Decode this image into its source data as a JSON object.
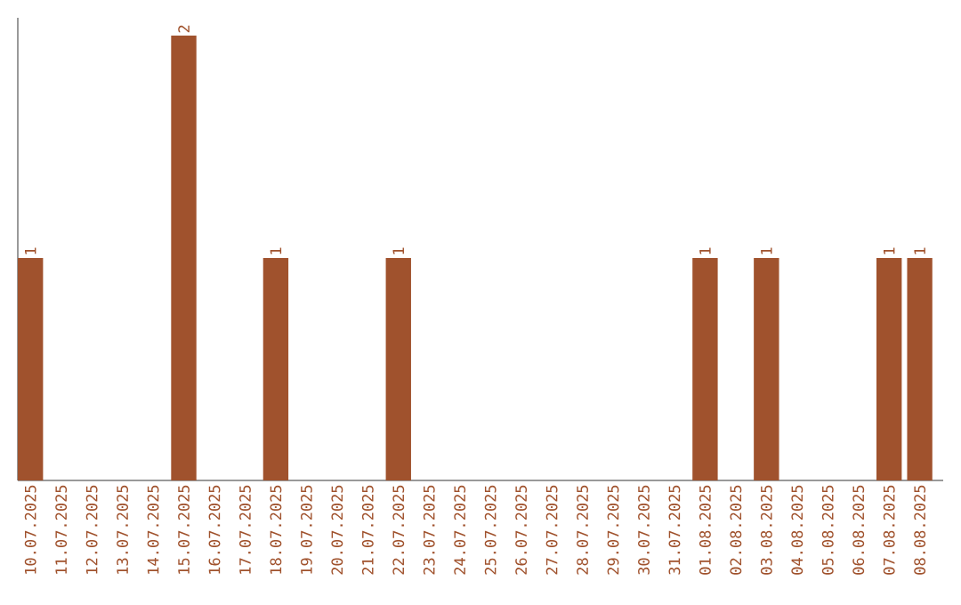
{
  "chart_data": {
    "type": "bar",
    "categories": [
      "10.07.2025",
      "11.07.2025",
      "12.07.2025",
      "13.07.2025",
      "14.07.2025",
      "15.07.2025",
      "16.07.2025",
      "17.07.2025",
      "18.07.2025",
      "19.07.2025",
      "20.07.2025",
      "21.07.2025",
      "22.07.2025",
      "23.07.2025",
      "24.07.2025",
      "25.07.2025",
      "26.07.2025",
      "27.07.2025",
      "28.07.2025",
      "29.07.2025",
      "30.07.2025",
      "31.07.2025",
      "01.08.2025",
      "02.08.2025",
      "03.08.2025",
      "04.08.2025",
      "05.08.2025",
      "06.08.2025",
      "07.08.2025",
      "08.08.2025"
    ],
    "values": [
      1,
      0,
      0,
      0,
      0,
      2,
      0,
      0,
      1,
      0,
      0,
      0,
      1,
      0,
      0,
      0,
      0,
      0,
      0,
      0,
      0,
      0,
      1,
      0,
      1,
      0,
      0,
      0,
      1,
      1
    ],
    "value_labels": [
      "1",
      null,
      null,
      null,
      null,
      "2",
      null,
      null,
      "1",
      null,
      null,
      null,
      "1",
      null,
      null,
      null,
      null,
      null,
      null,
      null,
      null,
      null,
      "1",
      null,
      "1",
      null,
      null,
      null,
      "1",
      "1"
    ],
    "color": "#a0522d",
    "ylim": [
      0,
      2.08
    ],
    "tick_labels": "x"
  }
}
